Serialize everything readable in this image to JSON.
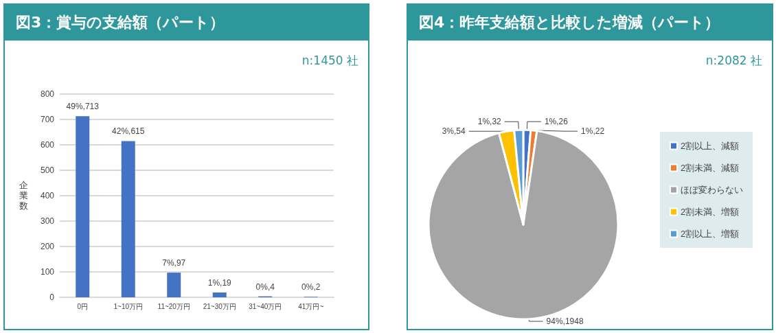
{
  "chart_data": [
    {
      "type": "bar",
      "title": "図3：賞与の支給額（パート）",
      "ylabel": "企業数",
      "annotations": [
        "n:1450 社"
      ],
      "categories": [
        "0円",
        "1~10万円",
        "11~20万円",
        "21~30万円",
        "31~40万円",
        "41万円~"
      ],
      "values": [
        713,
        615,
        97,
        19,
        4,
        2
      ],
      "color": "#4472c4",
      "value_labels": [
        "49%,713",
        "42%,615",
        "7%,97",
        "1%,19",
        "0%,4",
        "0%,2"
      ],
      "ylim": [
        0,
        800
      ],
      "yticks": [
        0,
        100,
        200,
        300,
        400,
        500,
        600,
        700,
        800
      ],
      "grid": "y",
      "legend": false
    },
    {
      "type": "pie",
      "title": "図4：昨年支給額と比較した増減（パート）",
      "annotations": [
        "n:2082 社"
      ],
      "categories": [
        "2割以上、減額",
        "2割未満、減額",
        "ほぼ変わらない",
        "2割未満、増額",
        "2割以上、増額"
      ],
      "values": [
        26,
        22,
        1948,
        54,
        32
      ],
      "colors": [
        "#4472c4",
        "#ed7d31",
        "#a5a5a5",
        "#ffc000",
        "#5b9bd5"
      ],
      "value_labels": [
        "1%,26",
        "1%,22",
        "94%,1948",
        "3%,54",
        "1%,32"
      ],
      "legend": "right"
    }
  ]
}
